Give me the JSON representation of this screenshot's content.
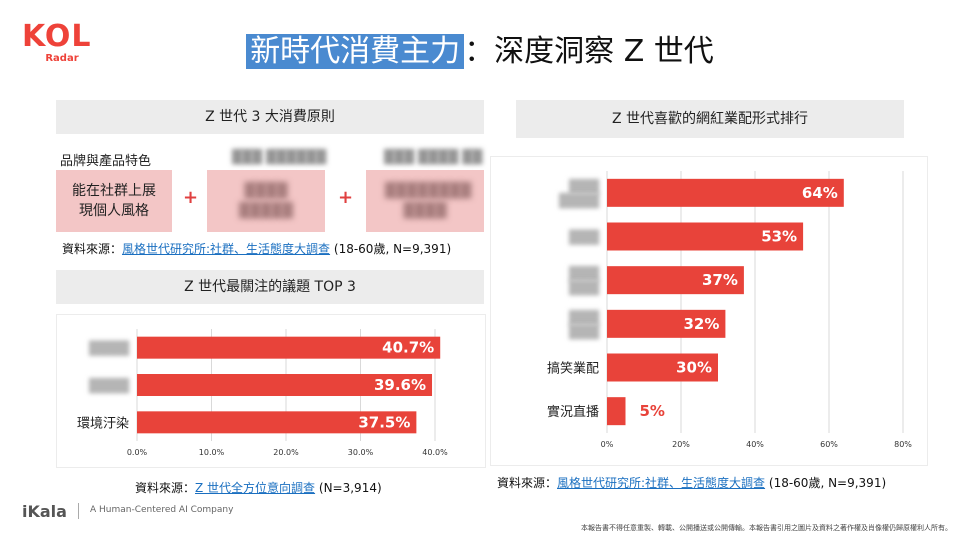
{
  "logo": {
    "brand": "KOL",
    "sub": "Radar"
  },
  "title": {
    "highlight": "新時代消費主力",
    "rest": "：深度洞察 Z 世代"
  },
  "principles": {
    "header": "Z 世代 3 大消費原則",
    "label1": "品牌與產品特色",
    "label2": "███ ██████",
    "label3": "███ ████ ██",
    "box1": "能在社群上展現個人風格",
    "box2": "████ █████",
    "box3": "████████ ████",
    "plus": "+",
    "source_prefix": "資料來源：",
    "source_link": "風格世代研究所:社群、生活態度大調查",
    "source_suffix": "(18-60歲, N=9,391)"
  },
  "issues": {
    "header": "Z 世代最關注的議題  TOP 3",
    "source_prefix": "資料來源：",
    "source_link": "Z 世代全方位意向調查",
    "source_suffix": "(N=3,914)"
  },
  "formats": {
    "header": "Z 世代喜歡的網紅業配形式排行",
    "source_prefix": "資料來源：",
    "source_link": "風格世代研究所:社群、生活態度大調查",
    "source_suffix": "(18-60歲, N=9,391)"
  },
  "footer": {
    "brand": "iKala",
    "tagline": "A Human-Centered AI Company",
    "disclaimer": "本報告書不得任意重製、轉載、公開播送或公開傳輸。本報告書引用之圖片及資料之著作權及肖像權仍歸原權利人所有。"
  },
  "colors": {
    "bar": "#e8433a",
    "highlight": "#4a8ad0"
  },
  "chart_data": [
    {
      "type": "bar",
      "orientation": "horizontal",
      "title": "Z 世代最關注的議題  TOP 3",
      "categories": [
        "████",
        "████",
        "環境汙染"
      ],
      "values": [
        40.7,
        39.6,
        37.5
      ],
      "value_labels": [
        "40.7%",
        "39.6%",
        "37.5%"
      ],
      "xlim": [
        0,
        40
      ],
      "ticks": [
        "0.0%",
        "10.0%",
        "20.0%",
        "30.0%",
        "40.0%"
      ],
      "grid": true,
      "legend": "none"
    },
    {
      "type": "bar",
      "orientation": "horizontal",
      "title": "Z 世代喜歡的網紅業配形式排行",
      "categories": [
        "███ ████",
        "███",
        "███ ███",
        "███ ███",
        "搞笑業配",
        "實況直播"
      ],
      "values": [
        64,
        53,
        37,
        32,
        30,
        5
      ],
      "value_labels": [
        "64%",
        "53%",
        "37%",
        "32%",
        "30%",
        "5%"
      ],
      "xlim": [
        0,
        80
      ],
      "ticks": [
        "0%",
        "20%",
        "40%",
        "60%",
        "80%"
      ],
      "grid": true,
      "legend": "none"
    }
  ]
}
